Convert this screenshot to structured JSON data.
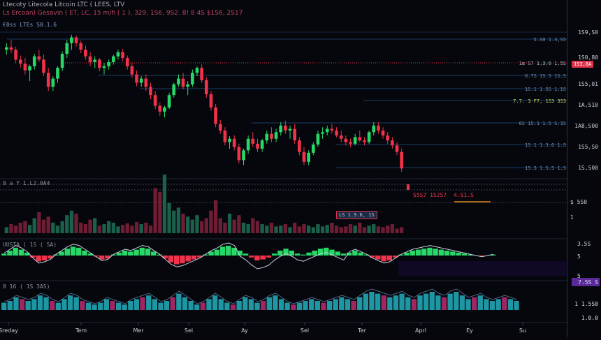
{
  "header": {
    "title": "Ltecoty Litecola Litcoin LTC ( LEES, LTV",
    "sub": "Ls Ercoan) Gesavin ( ET, LC, 15 m/h ( 1 ), 329, 1S6, 9S2. 8! 8 4S $1S6, 2S17",
    "symbol": "€0ss LTEs  S0.1.6",
    "volume_label": "0 a Y  1.L2.0A4",
    "osc1_label": "UUSTA ( 1S ( SA)",
    "osc2_label": "0  16 ( 1S 3AS)"
  },
  "colors": {
    "up": "#27d866",
    "down": "#f0324a",
    "price_line": "#e0324a",
    "level": "#1b3c66",
    "signal": "#c8d2e2"
  },
  "price_axis": [
    "1S9,S0",
    "1S0,80",
    "1S5,01",
    "1A,S10",
    "1A8,S00",
    "1S5,S0",
    "1S,S00",
    "1S,S00"
  ],
  "current_price": "1S3,8A",
  "level_labels": [
    {
      "text": "5.S0  1.3,S5",
      "color": "#6f8fb8"
    },
    {
      "text": "1α     S7 1.3.6  1.5S",
      "color": "#aeb6c2"
    },
    {
      "text": "0.7S  1S.5 1S.S",
      "color": "#6f8fb8"
    },
    {
      "text": "1S.1  1.5S  1.1S",
      "color": "#6f8fb8"
    },
    {
      "text": "7.7. 3 F7, 1S3 3S3",
      "color": "#c9d86a"
    },
    {
      "text": "6S 15.1  1.5 S.1S",
      "color": "#6f8fb8"
    },
    {
      "text": "1S.1 1.3.6 1.S",
      "color": "#6f8fb8"
    },
    {
      "text": "1S.3 1.S.5 1.S",
      "color": "#6f8fb8"
    }
  ],
  "annotations": {
    "marker": "LS 1.9.6, 1S",
    "alert_a": "S5S7  1S2S7",
    "alert_b": "4.S1.S"
  },
  "volume_axis": [
    "$ 5S0",
    "1"
  ],
  "osc1_axis": [
    "3.5S",
    "5",
    "5"
  ],
  "osc2_axis": [
    "7.5S  S",
    "1 1.5S0",
    "1.0.0"
  ],
  "time_labels": [
    "Sreday",
    "Tem",
    "Mer",
    "Sei",
    "Ay",
    "Sei",
    "Ter",
    "Aprl",
    "Ey",
    "Su"
  ],
  "chart_data": {
    "type": "candlestick",
    "candles": [
      [
        1500,
        1508,
        1494,
        1503
      ],
      [
        1503,
        1512,
        1496,
        1500
      ],
      [
        1500,
        1504,
        1484,
        1488
      ],
      [
        1488,
        1493,
        1478,
        1483
      ],
      [
        1483,
        1490,
        1470,
        1475
      ],
      [
        1475,
        1482,
        1462,
        1480
      ],
      [
        1480,
        1495,
        1476,
        1492
      ],
      [
        1492,
        1500,
        1485,
        1488
      ],
      [
        1488,
        1494,
        1468,
        1472
      ],
      [
        1472,
        1478,
        1450,
        1455
      ],
      [
        1455,
        1468,
        1450,
        1465
      ],
      [
        1465,
        1480,
        1460,
        1478
      ],
      [
        1478,
        1498,
        1474,
        1495
      ],
      [
        1495,
        1512,
        1490,
        1508
      ],
      [
        1508,
        1518,
        1500,
        1515
      ],
      [
        1515,
        1517,
        1504,
        1508
      ],
      [
        1508,
        1511,
        1496,
        1500
      ],
      [
        1500,
        1505,
        1488,
        1492
      ],
      [
        1492,
        1497,
        1480,
        1485
      ],
      [
        1485,
        1492,
        1478,
        1488
      ],
      [
        1488,
        1490,
        1474,
        1478
      ],
      [
        1478,
        1484,
        1470,
        1480
      ],
      [
        1480,
        1488,
        1476,
        1485
      ],
      [
        1485,
        1494,
        1482,
        1492
      ],
      [
        1492,
        1500,
        1488,
        1497
      ],
      [
        1497,
        1501,
        1486,
        1490
      ],
      [
        1490,
        1493,
        1476,
        1480
      ],
      [
        1480,
        1484,
        1466,
        1470
      ],
      [
        1470,
        1475,
        1456,
        1460
      ],
      [
        1460,
        1468,
        1455,
        1465
      ],
      [
        1465,
        1470,
        1450,
        1455
      ],
      [
        1455,
        1460,
        1440,
        1445
      ],
      [
        1445,
        1450,
        1428,
        1432
      ],
      [
        1432,
        1436,
        1420,
        1425
      ],
      [
        1425,
        1432,
        1418,
        1430
      ],
      [
        1430,
        1448,
        1428,
        1445
      ],
      [
        1445,
        1460,
        1442,
        1458
      ],
      [
        1458,
        1470,
        1455,
        1465
      ],
      [
        1465,
        1472,
        1452,
        1455
      ],
      [
        1455,
        1462,
        1445,
        1458
      ],
      [
        1458,
        1476,
        1455,
        1472
      ],
      [
        1472,
        1480,
        1468,
        1478
      ],
      [
        1478,
        1482,
        1460,
        1463
      ],
      [
        1463,
        1467,
        1442,
        1446
      ],
      [
        1446,
        1450,
        1426,
        1430
      ],
      [
        1430,
        1434,
        1406,
        1410
      ],
      [
        1410,
        1415,
        1398,
        1402
      ],
      [
        1402,
        1406,
        1384,
        1388
      ],
      [
        1388,
        1395,
        1380,
        1392
      ],
      [
        1392,
        1396,
        1378,
        1382
      ],
      [
        1382,
        1386,
        1362,
        1366
      ],
      [
        1366,
        1380,
        1360,
        1378
      ],
      [
        1378,
        1396,
        1374,
        1392
      ],
      [
        1392,
        1400,
        1382,
        1386
      ],
      [
        1386,
        1392,
        1376,
        1380
      ],
      [
        1380,
        1392,
        1376,
        1390
      ],
      [
        1390,
        1402,
        1386,
        1398
      ],
      [
        1398,
        1406,
        1388,
        1392
      ],
      [
        1392,
        1404,
        1388,
        1400
      ],
      [
        1400,
        1412,
        1396,
        1408
      ],
      [
        1408,
        1414,
        1398,
        1402
      ],
      [
        1402,
        1408,
        1392,
        1404
      ],
      [
        1404,
        1410,
        1386,
        1390
      ],
      [
        1390,
        1394,
        1372,
        1376
      ],
      [
        1376,
        1382,
        1360,
        1364
      ],
      [
        1364,
        1378,
        1360,
        1375
      ],
      [
        1375,
        1388,
        1372,
        1385
      ],
      [
        1385,
        1402,
        1382,
        1398
      ],
      [
        1398,
        1406,
        1392,
        1400
      ],
      [
        1400,
        1408,
        1396,
        1404
      ],
      [
        1404,
        1410,
        1398,
        1402
      ],
      [
        1402,
        1406,
        1394,
        1396
      ],
      [
        1396,
        1402,
        1388,
        1392
      ],
      [
        1392,
        1396,
        1384,
        1388
      ],
      [
        1388,
        1392,
        1382,
        1386
      ],
      [
        1386,
        1398,
        1384,
        1394
      ],
      [
        1394,
        1402,
        1388,
        1390
      ],
      [
        1390,
        1394,
        1384,
        1388
      ],
      [
        1388,
        1402,
        1386,
        1400
      ],
      [
        1400,
        1412,
        1396,
        1408
      ],
      [
        1408,
        1412,
        1398,
        1402
      ],
      [
        1402,
        1406,
        1392,
        1396
      ],
      [
        1396,
        1400,
        1386,
        1390
      ],
      [
        1390,
        1394,
        1380,
        1384
      ],
      [
        1384,
        1388,
        1372,
        1376
      ],
      [
        1376,
        1380,
        1352,
        1356
      ]
    ],
    "volume": [
      8,
      12,
      10,
      14,
      16,
      11,
      20,
      28,
      18,
      22,
      14,
      10,
      16,
      24,
      30,
      26,
      14,
      12,
      18,
      20,
      10,
      12,
      16,
      14,
      9,
      11,
      13,
      10,
      15,
      12,
      14,
      10,
      60,
      55,
      78,
      40,
      30,
      34,
      26,
      22,
      18,
      24,
      16,
      20,
      30,
      44,
      20,
      14,
      26,
      18,
      24,
      14,
      12,
      20,
      16,
      12,
      10,
      14,
      9,
      10,
      12,
      8,
      14,
      9,
      12,
      10,
      8,
      12,
      9,
      11,
      14,
      10,
      8,
      9,
      12,
      10,
      14,
      8,
      10,
      12,
      9,
      8,
      10,
      12,
      6,
      8
    ],
    "osc1": [
      0.2,
      0.5,
      0.8,
      0.6,
      0.3,
      -0.2,
      -0.6,
      -0.5,
      -0.3,
      0.1,
      0.4,
      0.7,
      0.9,
      0.8,
      0.5,
      0.2,
      -0.1,
      -0.4,
      -0.3,
      0.1,
      0.3,
      0.5,
      0.4,
      0.6,
      0.8,
      0.7,
      0.4,
      0.1,
      -0.3,
      -0.7,
      -0.9,
      -0.8,
      -0.6,
      -0.4,
      -0.2,
      0.1,
      0.4,
      0.6,
      0.9,
      1.0,
      0.8,
      0.5,
      0.2,
      -0.2,
      -0.5,
      -0.4,
      -0.2,
      0.2,
      0.5,
      0.7,
      0.5,
      0.2,
      0.1,
      0.3,
      0.5,
      0.7,
      0.8,
      0.6,
      0.4,
      0.2,
      0.3,
      0.5,
      0.3,
      0.1,
      -0.2,
      -0.4,
      -0.6,
      -0.5,
      -0.2,
      0.1,
      0.3,
      0.5,
      0.6,
      0.7,
      0.8,
      0.7,
      0.6,
      0.5,
      0.4,
      0.3,
      0.2,
      0.1,
      0.0,
      -0.1,
      0.0,
      0.1
    ],
    "osc2": [
      0.4,
      0.5,
      0.7,
      0.6,
      0.5,
      0.6,
      0.8,
      0.7,
      0.5,
      0.4,
      0.6,
      0.8,
      0.7,
      0.5,
      0.4,
      0.3,
      0.4,
      0.6,
      0.5,
      0.4,
      0.3,
      0.5,
      0.6,
      0.7,
      0.8,
      0.6,
      0.4,
      0.5,
      0.7,
      0.9,
      0.7,
      0.5,
      0.3,
      0.4,
      0.6,
      0.8,
      0.6,
      0.4,
      0.3,
      0.5,
      0.7,
      0.6,
      0.4,
      0.5,
      0.7,
      0.8,
      0.6,
      0.4,
      0.3,
      0.4,
      0.5,
      0.6,
      0.5,
      0.4,
      0.5,
      0.6,
      0.7,
      0.6,
      0.5,
      0.7,
      0.9,
      1.0,
      0.9,
      0.8,
      0.7,
      0.8,
      0.9,
      0.7,
      0.6,
      0.8,
      0.9,
      1.0,
      0.8,
      0.7,
      0.9,
      1.0,
      0.8,
      0.6,
      0.7,
      0.8,
      0.6,
      0.5,
      0.6,
      0.7,
      0.6,
      0.5
    ]
  }
}
